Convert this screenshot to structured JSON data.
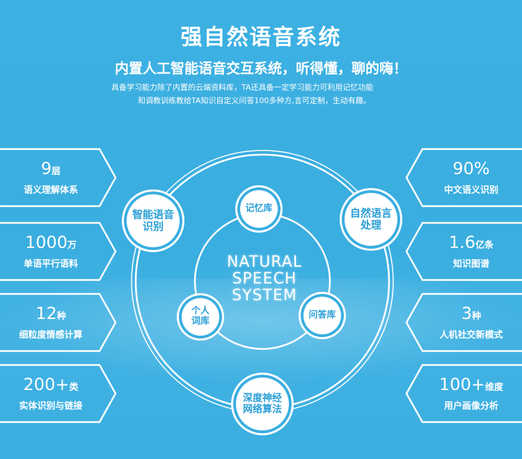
{
  "header": {
    "title": "强自然语音系统",
    "subtitle": "内置人工智能语音交互系统，听得懂，聊的嗨！",
    "description": [
      "具备学习能力除了内置的云端资料库，TA还具备一定学习能力可利用记忆功能",
      "和调教训练教给TA知识自定义问答100多种方,言可定制，生动有趣。"
    ]
  },
  "left_panels": [
    {
      "number": "9",
      "unit": "层",
      "label": "语义理解体系"
    },
    {
      "number": "1000",
      "unit": "万",
      "label": "单语平行语料"
    },
    {
      "number": "12",
      "unit": "种",
      "label": "细粒度情感计算"
    },
    {
      "number": "200+",
      "unit": "类",
      "label": "实体识别与链接"
    }
  ],
  "right_panels": [
    {
      "number": "90%",
      "unit": "",
      "label": "中文语义识别"
    },
    {
      "number": "1.6",
      "unit": "亿条",
      "label": "知识图谱"
    },
    {
      "number": "3",
      "unit": "种",
      "label": "人机社交新模式"
    },
    {
      "number": "100+",
      "unit": "维度",
      "label": "用户画像分析"
    }
  ],
  "center": {
    "text": [
      "NATURAL",
      "SPEECH",
      "SYSTEM"
    ],
    "nodes": [
      "智能语音识别",
      "记忆库",
      "自然语言处理",
      "个人词库",
      "问答库",
      "深度神经网络算法"
    ]
  },
  "colors": {
    "background": "#3aaee0",
    "node_text": "#2a9fd6"
  }
}
